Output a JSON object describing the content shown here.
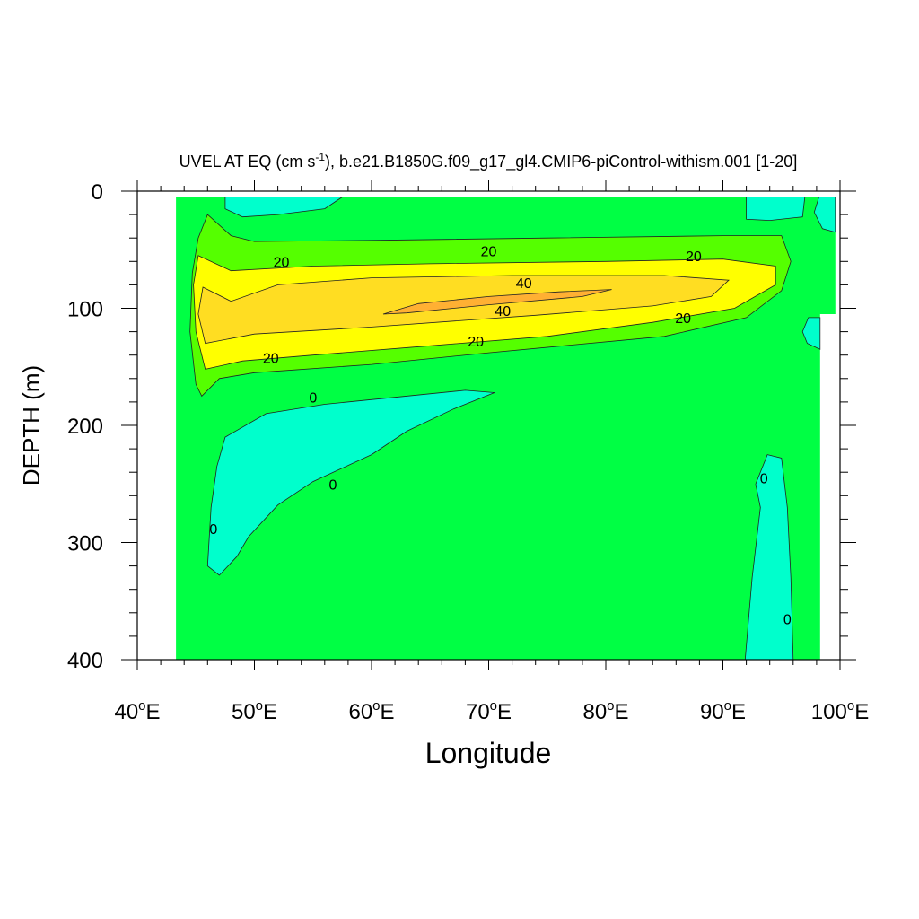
{
  "chart_data": {
    "type": "heatmap",
    "title": "UVEL AT EQ (cm s",
    "title_sup": "-1",
    "title_rest": "), b.e21.B1850G.f09_g17_gl4.CMIP6-piControl-withism.001 [1-20]",
    "xlabel": "Longitude",
    "ylabel": "DEPTH (m)",
    "xlim": [
      40,
      100
    ],
    "ylim": [
      0,
      400
    ],
    "y_inverted": true,
    "x_ticks": [
      40,
      50,
      60,
      70,
      80,
      90,
      100
    ],
    "x_tick_labels": [
      "40",
      "50",
      "60",
      "70",
      "80",
      "90",
      "100"
    ],
    "x_tick_suffix_sup": "o",
    "x_tick_suffix": "E",
    "y_ticks": [
      0,
      100,
      200,
      300,
      400
    ],
    "y_tick_labels": [
      "0",
      "100",
      "200",
      "300",
      "400"
    ],
    "contour_levels": [
      0,
      10,
      20,
      30,
      40
    ],
    "colors": {
      "below_0": "#00ffcc",
      "0_10": "#00ff44",
      "10_20": "#55ff00",
      "20_30": "#ffff00",
      "30_40": "#ffdd22",
      "above_40": "#ffb033"
    },
    "regions": [
      {
        "name": "background-0-10",
        "level": "0_10",
        "points": [
          [
            43.3,
            5
          ],
          [
            98.3,
            5
          ],
          [
            98.3,
            105
          ],
          [
            99.6,
            105
          ],
          [
            99.6,
            5
          ],
          [
            98.3,
            5
          ],
          [
            98.3,
            400
          ],
          [
            43.3,
            400
          ]
        ]
      },
      {
        "name": "surface-neg-west",
        "level": "below_0",
        "points": [
          [
            47.5,
            5
          ],
          [
            57.5,
            5
          ],
          [
            56,
            15
          ],
          [
            52,
            20
          ],
          [
            49,
            22
          ],
          [
            47.5,
            15
          ]
        ]
      },
      {
        "name": "surface-neg-east",
        "level": "below_0",
        "points": [
          [
            92,
            5
          ],
          [
            97,
            5
          ],
          [
            96.8,
            22
          ],
          [
            94,
            25
          ],
          [
            92,
            24
          ]
        ]
      },
      {
        "name": "surface-neg-east2",
        "level": "below_0",
        "points": [
          [
            98.2,
            5
          ],
          [
            99.6,
            5
          ],
          [
            99.6,
            35
          ],
          [
            98.5,
            32
          ],
          [
            97.8,
            18
          ]
        ]
      },
      {
        "name": "neg-patch-east-100",
        "level": "below_0",
        "points": [
          [
            97.3,
            108
          ],
          [
            98.3,
            108
          ],
          [
            98.3,
            135
          ],
          [
            97.2,
            130
          ],
          [
            96.8,
            120
          ]
        ]
      },
      {
        "name": "neg-tongue-west",
        "level": "below_0",
        "points": [
          [
            47.5,
            210
          ],
          [
            51,
            190
          ],
          [
            56,
            182
          ],
          [
            62,
            176
          ],
          [
            68,
            170
          ],
          [
            70.5,
            172
          ],
          [
            67,
            186
          ],
          [
            63,
            205
          ],
          [
            60,
            225
          ],
          [
            55,
            248
          ],
          [
            52,
            268
          ],
          [
            49.5,
            295
          ],
          [
            48.5,
            312
          ],
          [
            47,
            328
          ],
          [
            46,
            320
          ],
          [
            46.3,
            270
          ],
          [
            46.8,
            235
          ]
        ]
      },
      {
        "name": "neg-tongue-east",
        "level": "below_0",
        "points": [
          [
            93.8,
            225
          ],
          [
            95,
            228
          ],
          [
            95.5,
            270
          ],
          [
            95.8,
            330
          ],
          [
            96,
            400
          ],
          [
            91.9,
            400
          ],
          [
            92.5,
            330
          ],
          [
            93.2,
            270
          ],
          [
            92.8,
            250
          ]
        ]
      },
      {
        "name": "core-10-20",
        "level": "10_20",
        "points": [
          [
            46,
            20
          ],
          [
            48,
            38
          ],
          [
            50,
            43
          ],
          [
            60,
            42
          ],
          [
            75,
            40
          ],
          [
            90,
            38
          ],
          [
            95,
            38
          ],
          [
            95.8,
            60
          ],
          [
            95,
            85
          ],
          [
            92,
            108
          ],
          [
            85,
            124
          ],
          [
            70,
            138
          ],
          [
            60,
            148
          ],
          [
            50,
            155
          ],
          [
            47,
            160
          ],
          [
            45.5,
            175
          ],
          [
            45,
            165
          ],
          [
            44.5,
            120
          ],
          [
            44.7,
            70
          ],
          [
            45.2,
            40
          ]
        ]
      },
      {
        "name": "core-20-30",
        "level": "20_30",
        "points": [
          [
            45.2,
            55
          ],
          [
            48,
            68
          ],
          [
            55,
            64
          ],
          [
            65,
            62
          ],
          [
            80,
            60
          ],
          [
            90,
            58
          ],
          [
            94.5,
            64
          ],
          [
            94.5,
            80
          ],
          [
            91,
            100
          ],
          [
            84,
            112
          ],
          [
            75,
            124
          ],
          [
            65,
            132
          ],
          [
            55,
            140
          ],
          [
            49,
            145
          ],
          [
            45.8,
            152
          ],
          [
            45,
            120
          ],
          [
            44.8,
            80
          ]
        ]
      },
      {
        "name": "core-30-40",
        "level": "30_40",
        "points": [
          [
            45.6,
            82
          ],
          [
            48,
            94
          ],
          [
            52,
            80
          ],
          [
            60,
            74
          ],
          [
            72,
            72
          ],
          [
            85,
            72
          ],
          [
            90.5,
            76
          ],
          [
            89,
            90
          ],
          [
            84,
            98
          ],
          [
            74,
            106
          ],
          [
            60,
            116
          ],
          [
            50,
            122
          ],
          [
            45.8,
            130
          ],
          [
            45.2,
            105
          ]
        ]
      },
      {
        "name": "core-above-40",
        "level": "above_40",
        "points": [
          [
            61,
            105
          ],
          [
            64,
            96
          ],
          [
            70,
            90
          ],
          [
            76,
            86
          ],
          [
            80.5,
            84
          ],
          [
            78,
            90
          ],
          [
            70,
            97
          ],
          [
            63,
            104
          ]
        ]
      }
    ],
    "contour_labels": [
      {
        "text": "20",
        "x": 52.3,
        "y": 60
      },
      {
        "text": "20",
        "x": 70.0,
        "y": 51
      },
      {
        "text": "20",
        "x": 87.5,
        "y": 55
      },
      {
        "text": "40",
        "x": 73.0,
        "y": 78
      },
      {
        "text": "40",
        "x": 71.2,
        "y": 102
      },
      {
        "text": "20",
        "x": 86.6,
        "y": 108
      },
      {
        "text": "20",
        "x": 68.9,
        "y": 128
      },
      {
        "text": "20",
        "x": 51.4,
        "y": 142
      },
      {
        "text": "0",
        "x": 55.0,
        "y": 176
      },
      {
        "text": "0",
        "x": 56.7,
        "y": 250
      },
      {
        "text": "0",
        "x": 46.5,
        "y": 288
      },
      {
        "text": "0",
        "x": 93.5,
        "y": 245
      },
      {
        "text": "0",
        "x": 95.5,
        "y": 365
      }
    ]
  }
}
